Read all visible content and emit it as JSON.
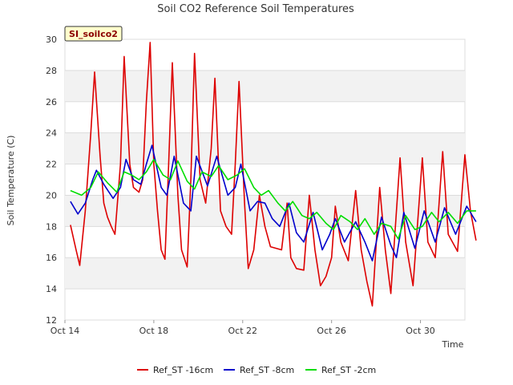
{
  "chart_data": {
    "type": "line",
    "title": "Soil CO2 Reference Soil Temperatures",
    "site_tag": "SI_soilco2",
    "xlabel": "Time",
    "ylabel": "Soil Temperature (C)",
    "ylim": [
      12,
      30
    ],
    "yticks": [
      12,
      14,
      16,
      18,
      20,
      22,
      24,
      26,
      28,
      30
    ],
    "xlim": [
      "2013-10-14",
      "2013-11-01 00:00"
    ],
    "xticks": [
      {
        "date": "2013-10-14",
        "label": "Oct 14"
      },
      {
        "date": "2013-10-18",
        "label": "Oct 18"
      },
      {
        "date": "2013-10-22",
        "label": "Oct 22"
      },
      {
        "date": "2013-10-26",
        "label": "Oct 26"
      },
      {
        "date": "2013-10-30",
        "label": "Oct 30"
      }
    ],
    "grid": true,
    "legend_position": "bottom",
    "series": [
      {
        "name": "Ref_ST -16cm",
        "color": "#dd0000",
        "points": [
          [
            "2013-10-14 06:00",
            18.1
          ],
          [
            "2013-10-14 12:00",
            16.5
          ],
          [
            "2013-10-14 16:00",
            15.5
          ],
          [
            "2013-10-14 22:00",
            19.0
          ],
          [
            "2013-10-15 04:00",
            24.0
          ],
          [
            "2013-10-15 08:00",
            27.9
          ],
          [
            "2013-10-15 14:00",
            22.5
          ],
          [
            "2013-10-15 18:00",
            19.5
          ],
          [
            "2013-10-15 22:00",
            18.6
          ],
          [
            "2013-10-16 02:00",
            18.0
          ],
          [
            "2013-10-16 06:00",
            17.5
          ],
          [
            "2013-10-16 12:00",
            22.0
          ],
          [
            "2013-10-16 16:00",
            28.9
          ],
          [
            "2013-10-16 22:00",
            22.0
          ],
          [
            "2013-10-17 02:00",
            20.5
          ],
          [
            "2013-10-17 08:00",
            20.2
          ],
          [
            "2013-10-17 12:00",
            21.0
          ],
          [
            "2013-10-17 16:00",
            26.0
          ],
          [
            "2013-10-17 20:00",
            29.8
          ],
          [
            "2013-10-18 00:00",
            22.0
          ],
          [
            "2013-10-18 04:00",
            19.0
          ],
          [
            "2013-10-18 08:00",
            16.5
          ],
          [
            "2013-10-18 12:00",
            15.9
          ],
          [
            "2013-10-18 16:00",
            22.0
          ],
          [
            "2013-10-18 20:00",
            28.5
          ],
          [
            "2013-10-19 02:00",
            20.0
          ],
          [
            "2013-10-19 06:00",
            16.5
          ],
          [
            "2013-10-19 12:00",
            15.4
          ],
          [
            "2013-10-19 16:00",
            21.0
          ],
          [
            "2013-10-19 20:00",
            29.1
          ],
          [
            "2013-10-20 02:00",
            21.0
          ],
          [
            "2013-10-20 08:00",
            19.5
          ],
          [
            "2013-10-20 14:00",
            23.0
          ],
          [
            "2013-10-20 18:00",
            27.5
          ],
          [
            "2013-10-21 00:00",
            19.0
          ],
          [
            "2013-10-21 06:00",
            18.0
          ],
          [
            "2013-10-21 12:00",
            17.5
          ],
          [
            "2013-10-21 16:00",
            22.0
          ],
          [
            "2013-10-21 20:00",
            27.3
          ],
          [
            "2013-10-22 02:00",
            19.5
          ],
          [
            "2013-10-22 06:00",
            15.3
          ],
          [
            "2013-10-22 12:00",
            16.5
          ],
          [
            "2013-10-22 18:00",
            20.0
          ],
          [
            "2013-10-23 00:00",
            18.0
          ],
          [
            "2013-10-23 06:00",
            16.7
          ],
          [
            "2013-10-23 18:00",
            16.5
          ],
          [
            "2013-10-24 00:00",
            19.5
          ],
          [
            "2013-10-24 04:00",
            16.0
          ],
          [
            "2013-10-24 10:00",
            15.3
          ],
          [
            "2013-10-24 18:00",
            15.2
          ],
          [
            "2013-10-25 00:00",
            20.0
          ],
          [
            "2013-10-25 06:00",
            16.5
          ],
          [
            "2013-10-25 12:00",
            14.2
          ],
          [
            "2013-10-25 18:00",
            14.8
          ],
          [
            "2013-10-26 00:00",
            16.0
          ],
          [
            "2013-10-26 04:00",
            19.3
          ],
          [
            "2013-10-26 10:00",
            17.0
          ],
          [
            "2013-10-26 18:00",
            15.8
          ],
          [
            "2013-10-27 02:00",
            20.3
          ],
          [
            "2013-10-27 08:00",
            16.5
          ],
          [
            "2013-10-27 14:00",
            14.5
          ],
          [
            "2013-10-27 20:00",
            12.9
          ],
          [
            "2013-10-28 04:00",
            20.5
          ],
          [
            "2013-10-28 10:00",
            16.5
          ],
          [
            "2013-10-28 16:00",
            13.7
          ],
          [
            "2013-10-29 02:00",
            22.4
          ],
          [
            "2013-10-29 08:00",
            17.0
          ],
          [
            "2013-10-29 16:00",
            14.2
          ],
          [
            "2013-10-30 02:00",
            22.4
          ],
          [
            "2013-10-30 08:00",
            17.0
          ],
          [
            "2013-10-30 16:00",
            16.0
          ],
          [
            "2013-10-31 00:00",
            22.8
          ],
          [
            "2013-10-31 06:00",
            17.5
          ],
          [
            "2013-10-31 16:00",
            16.4
          ],
          [
            "2013-11-01 00:00",
            22.6
          ],
          [
            "2013-11-01 06:00",
            19.0
          ],
          [
            "2013-11-01 12:00",
            17.1
          ]
        ]
      },
      {
        "name": "Ref_ST -8cm",
        "color": "#0000cc",
        "points": [
          [
            "2013-10-14 06:00",
            19.6
          ],
          [
            "2013-10-14 14:00",
            18.8
          ],
          [
            "2013-10-14 22:00",
            19.5
          ],
          [
            "2013-10-15 06:00",
            21.0
          ],
          [
            "2013-10-15 10:00",
            21.6
          ],
          [
            "2013-10-15 18:00",
            20.7
          ],
          [
            "2013-10-16 04:00",
            19.8
          ],
          [
            "2013-10-16 12:00",
            20.5
          ],
          [
            "2013-10-16 18:00",
            22.3
          ],
          [
            "2013-10-17 02:00",
            21.0
          ],
          [
            "2013-10-17 10:00",
            20.7
          ],
          [
            "2013-10-17 16:00",
            22.0
          ],
          [
            "2013-10-17 22:00",
            23.2
          ],
          [
            "2013-10-18 08:00",
            20.5
          ],
          [
            "2013-10-18 14:00",
            20.0
          ],
          [
            "2013-10-18 22:00",
            22.5
          ],
          [
            "2013-10-19 08:00",
            19.5
          ],
          [
            "2013-10-19 16:00",
            19.0
          ],
          [
            "2013-10-19 22:00",
            22.5
          ],
          [
            "2013-10-20 10:00",
            20.6
          ],
          [
            "2013-10-20 20:00",
            22.5
          ],
          [
            "2013-10-21 08:00",
            20.0
          ],
          [
            "2013-10-21 16:00",
            20.5
          ],
          [
            "2013-10-21 22:00",
            22.0
          ],
          [
            "2013-10-22 08:00",
            19.0
          ],
          [
            "2013-10-22 16:00",
            19.6
          ],
          [
            "2013-10-23 00:00",
            19.5
          ],
          [
            "2013-10-23 08:00",
            18.5
          ],
          [
            "2013-10-23 16:00",
            18.0
          ],
          [
            "2013-10-24 02:00",
            19.5
          ],
          [
            "2013-10-24 10:00",
            17.6
          ],
          [
            "2013-10-24 18:00",
            17.0
          ],
          [
            "2013-10-25 04:00",
            18.9
          ],
          [
            "2013-10-25 14:00",
            16.5
          ],
          [
            "2013-10-25 22:00",
            17.5
          ],
          [
            "2013-10-26 04:00",
            18.5
          ],
          [
            "2013-10-26 14:00",
            17.0
          ],
          [
            "2013-10-27 02:00",
            18.3
          ],
          [
            "2013-10-27 12:00",
            17.0
          ],
          [
            "2013-10-27 20:00",
            15.8
          ],
          [
            "2013-10-28 06:00",
            18.6
          ],
          [
            "2013-10-28 16:00",
            16.8
          ],
          [
            "2013-10-28 22:00",
            16.0
          ],
          [
            "2013-10-29 06:00",
            18.9
          ],
          [
            "2013-10-29 18:00",
            16.6
          ],
          [
            "2013-10-30 04:00",
            19.0
          ],
          [
            "2013-10-30 16:00",
            17.0
          ],
          [
            "2013-10-31 02:00",
            19.2
          ],
          [
            "2013-10-31 14:00",
            17.5
          ],
          [
            "2013-11-01 02:00",
            19.3
          ],
          [
            "2013-11-01 12:00",
            18.3
          ]
        ]
      },
      {
        "name": "Ref_ST -2cm",
        "color": "#00dd00",
        "points": [
          [
            "2013-10-14 06:00",
            20.3
          ],
          [
            "2013-10-14 18:00",
            20.0
          ],
          [
            "2013-10-15 04:00",
            20.5
          ],
          [
            "2013-10-15 12:00",
            21.5
          ],
          [
            "2013-10-15 22:00",
            20.8
          ],
          [
            "2013-10-16 08:00",
            20.2
          ],
          [
            "2013-10-16 16:00",
            21.5
          ],
          [
            "2013-10-17 00:00",
            21.3
          ],
          [
            "2013-10-17 08:00",
            21.0
          ],
          [
            "2013-10-17 16:00",
            21.5
          ],
          [
            "2013-10-18 00:00",
            22.3
          ],
          [
            "2013-10-18 10:00",
            21.3
          ],
          [
            "2013-10-18 18:00",
            21.0
          ],
          [
            "2013-10-19 02:00",
            22.2
          ],
          [
            "2013-10-19 12:00",
            20.9
          ],
          [
            "2013-10-19 20:00",
            20.4
          ],
          [
            "2013-10-20 04:00",
            21.5
          ],
          [
            "2013-10-20 14:00",
            21.2
          ],
          [
            "2013-10-20 22:00",
            21.9
          ],
          [
            "2013-10-21 08:00",
            21.0
          ],
          [
            "2013-10-21 18:00",
            21.3
          ],
          [
            "2013-10-22 02:00",
            21.7
          ],
          [
            "2013-10-22 12:00",
            20.5
          ],
          [
            "2013-10-22 20:00",
            20.0
          ],
          [
            "2013-10-23 04:00",
            20.3
          ],
          [
            "2013-10-23 14:00",
            19.5
          ],
          [
            "2013-10-23 22:00",
            19.0
          ],
          [
            "2013-10-24 06:00",
            19.6
          ],
          [
            "2013-10-24 16:00",
            18.7
          ],
          [
            "2013-10-25 00:00",
            18.5
          ],
          [
            "2013-10-25 08:00",
            18.9
          ],
          [
            "2013-10-25 18:00",
            18.2
          ],
          [
            "2013-10-26 02:00",
            17.8
          ],
          [
            "2013-10-26 10:00",
            18.7
          ],
          [
            "2013-10-26 20:00",
            18.3
          ],
          [
            "2013-10-27 04:00",
            17.8
          ],
          [
            "2013-10-27 12:00",
            18.5
          ],
          [
            "2013-10-27 22:00",
            17.5
          ],
          [
            "2013-10-28 06:00",
            18.2
          ],
          [
            "2013-10-28 16:00",
            18.0
          ],
          [
            "2013-10-29 00:00",
            17.2
          ],
          [
            "2013-10-29 08:00",
            18.7
          ],
          [
            "2013-10-29 18:00",
            17.8
          ],
          [
            "2013-10-30 02:00",
            18.0
          ],
          [
            "2013-10-30 12:00",
            18.9
          ],
          [
            "2013-10-30 20:00",
            18.3
          ],
          [
            "2013-10-31 06:00",
            18.9
          ],
          [
            "2013-10-31 16:00",
            18.2
          ],
          [
            "2013-11-01 02:00",
            19.0
          ],
          [
            "2013-11-01 12:00",
            19.0
          ]
        ]
      }
    ]
  }
}
